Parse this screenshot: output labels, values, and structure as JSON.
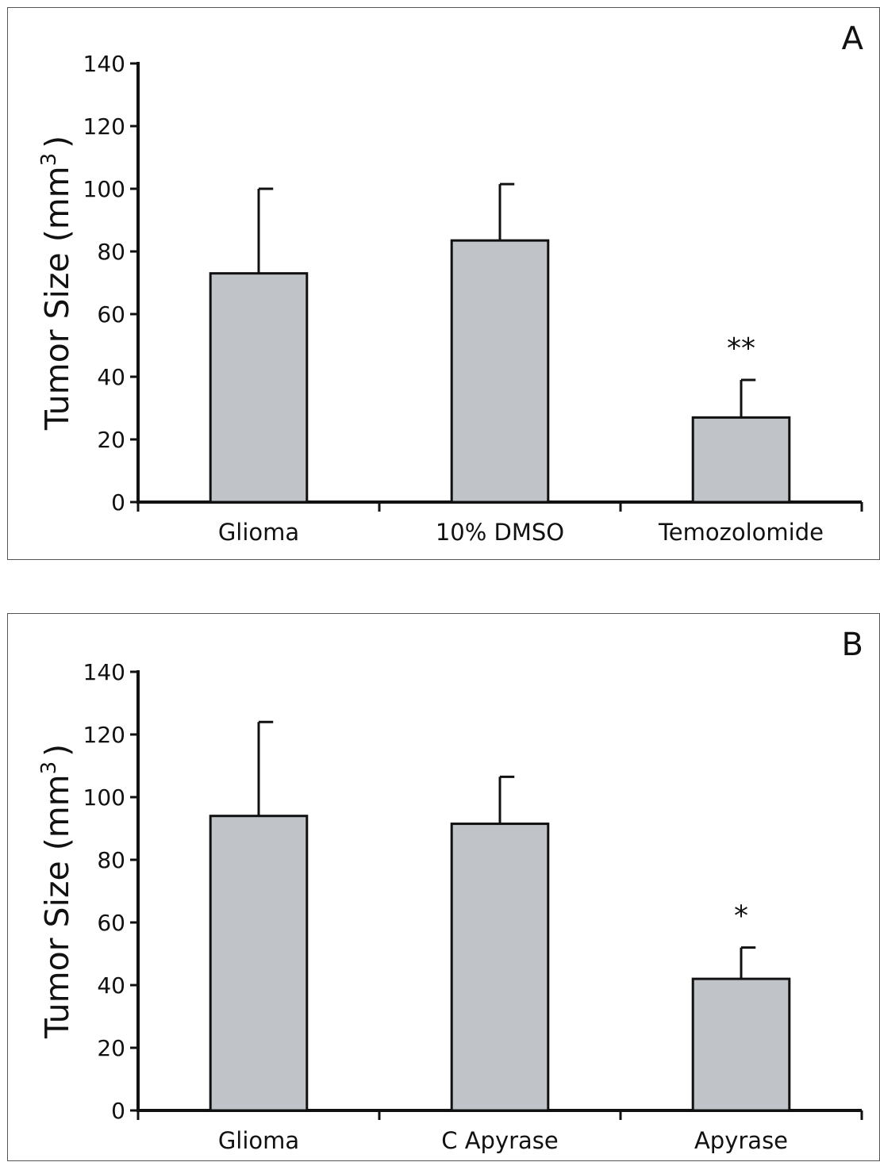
{
  "chart_data": [
    {
      "type": "bar",
      "panel_label": "A",
      "ylabel": "Tumor Size (mm",
      "ylabel_superscript": "3",
      "ylabel_close": ")",
      "categories": [
        "Glioma",
        "10% DMSO",
        "Temozolomide"
      ],
      "values": [
        73,
        83.5,
        27
      ],
      "error_bars": [
        27,
        18,
        12
      ],
      "significance": [
        "",
        "",
        "**"
      ],
      "ylim": [
        0,
        140
      ],
      "yticks": [
        "0",
        "20",
        "40",
        "60",
        "80",
        "100",
        "120",
        "140"
      ],
      "bar_color": "#c0c4c9",
      "grid": false
    },
    {
      "type": "bar",
      "panel_label": "B",
      "ylabel": "Tumor Size (mm",
      "ylabel_superscript": "3",
      "ylabel_close": ")",
      "categories": [
        "Glioma",
        "C Apyrase",
        "Apyrase"
      ],
      "values": [
        94,
        91.5,
        42
      ],
      "error_bars": [
        30,
        15,
        10
      ],
      "significance": [
        "",
        "",
        "*"
      ],
      "ylim": [
        0,
        140
      ],
      "yticks": [
        "0",
        "20",
        "40",
        "60",
        "80",
        "100",
        "120",
        "140"
      ],
      "bar_color": "#c0c4c9",
      "grid": false
    }
  ]
}
